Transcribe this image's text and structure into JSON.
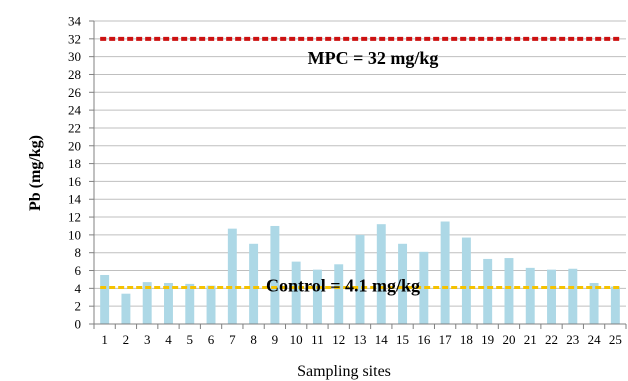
{
  "chart_data": {
    "type": "bar",
    "title": "",
    "xlabel": "Sampling sites",
    "ylabel": "Pb (mg/kg)",
    "ylim": [
      0,
      34
    ],
    "ytick_step": 2,
    "grid": "horizontal",
    "categories": [
      "1",
      "2",
      "3",
      "4",
      "5",
      "6",
      "7",
      "8",
      "9",
      "10",
      "11",
      "12",
      "13",
      "14",
      "15",
      "16",
      "17",
      "18",
      "19",
      "20",
      "21",
      "22",
      "23",
      "24",
      "25"
    ],
    "series": [
      {
        "values": [
          5.5,
          3.4,
          4.7,
          4.6,
          4.5,
          4.3,
          10.7,
          9.0,
          11.0,
          7.0,
          6.1,
          6.7,
          10.0,
          11.2,
          9.0,
          8.1,
          11.5,
          9.7,
          7.3,
          7.4,
          6.3,
          6.1,
          6.2,
          4.6,
          4.2
        ],
        "color": "#add8e6"
      }
    ],
    "reference_lines": [
      {
        "label": "MPC  = 32 mg/kg",
        "value": 32,
        "color": "#cc1111"
      },
      {
        "label": "Control = 4.1 mg/kg",
        "value": 4.1,
        "color": "#f5c200"
      }
    ]
  }
}
